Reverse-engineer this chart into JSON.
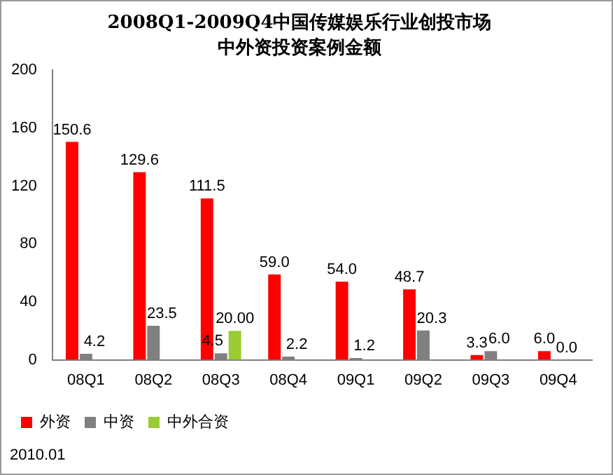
{
  "chart_data": {
    "type": "bar",
    "title": "2008Q1-2009Q4中国传媒娱乐行业创投市场",
    "subtitle": "中外资投资案例金额",
    "categories": [
      "08Q1",
      "08Q2",
      "08Q3",
      "08Q4",
      "09Q1",
      "09Q2",
      "09Q3",
      "09Q4"
    ],
    "series": [
      {
        "name": "外资",
        "color": "#ff0000",
        "values": [
          150.6,
          129.6,
          111.5,
          59.0,
          54.0,
          48.7,
          3.3,
          6.0
        ],
        "value_labels": [
          "150.6",
          "129.6",
          "111.5",
          "59.0",
          "54.0",
          "48.7",
          "3.3",
          "6.0"
        ]
      },
      {
        "name": "中资",
        "color": "#808080",
        "values": [
          4.2,
          23.5,
          4.5,
          2.2,
          1.2,
          20.3,
          6.0,
          0.0
        ],
        "value_labels": [
          "4.2",
          "23.5",
          "4.5",
          "2.2",
          "1.2",
          "20.3",
          "6.0",
          "0.0"
        ]
      },
      {
        "name": "中外合资",
        "color": "#99cc33",
        "values": [
          null,
          null,
          20.0,
          null,
          null,
          null,
          null,
          null
        ],
        "value_labels": [
          null,
          null,
          "20.00",
          null,
          null,
          null,
          null,
          null
        ]
      }
    ],
    "ylim": [
      0,
      200
    ],
    "yticks": [
      0,
      40,
      80,
      120,
      160,
      200
    ],
    "grid": false,
    "legend": "bottom",
    "annotations": [
      "2010.01"
    ]
  }
}
